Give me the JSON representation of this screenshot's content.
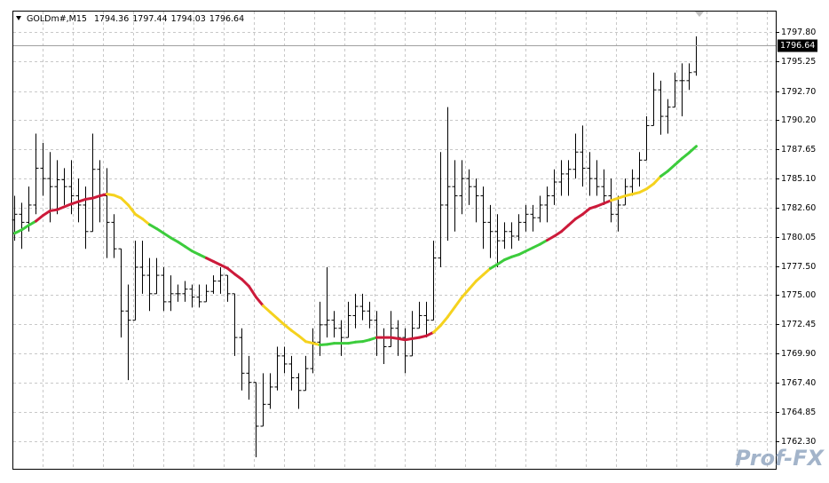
{
  "chart_data": {
    "type": "ohlc",
    "title": "GOLDm#,M15",
    "bar_color": "#000000",
    "grid": true,
    "watermark": "Prof-FX",
    "ylim": [
      1759.9,
      1799.6
    ],
    "yticks": [
      {
        "value": 1797.8,
        "label": "1797.80"
      },
      1795.25,
      {
        "value": 1792.7,
        "label": "1792.70"
      },
      {
        "value": 1790.2,
        "label": "1790.20"
      },
      1787.65,
      {
        "value": 1785.1,
        "label": "1785.10"
      },
      {
        "value": 1782.6,
        "label": "1782.60"
      },
      1780.05,
      {
        "value": 1777.5,
        "label": "1777.50"
      },
      {
        "value": 1775,
        "label": "1775.00"
      },
      1772.45,
      {
        "value": 1769.9,
        "label": "1769.90"
      },
      {
        "value": 1767.4,
        "label": "1767.40"
      },
      1764.85,
      {
        "value": 1762.3,
        "label": "1762.30"
      }
    ],
    "open": [
      1781.5,
      1782.0,
      1781.3,
      1782.8,
      1786.0,
      1785.1,
      1784.4,
      1785.0,
      1784.4,
      1783.6,
      1782.8,
      1780.5,
      1785.9,
      1783.6,
      1781.3,
      1779.0,
      1773.6,
      1772.8,
      1777.4,
      1776.7,
      1775.1,
      1776.7,
      1774.4,
      1775.1,
      1775.1,
      1775.5,
      1774.8,
      1774.4,
      1775.3,
      1776.2,
      1776.7,
      1775.1,
      1771.3,
      1768.2,
      1767.4,
      1763.6,
      1765.5,
      1767.0,
      1769.7,
      1769.0,
      1767.8,
      1766.7,
      1768.6,
      1770.9,
      1772.4,
      1772.8,
      1772.1,
      1771.3,
      1773.2,
      1774.0,
      1773.6,
      1772.8,
      1771.3,
      1770.5,
      1772.1,
      1771.3,
      1769.7,
      1772.1,
      1773.2,
      1772.8,
      1778.2,
      1782.8,
      1784.4,
      1783.6,
      1785.1,
      1784.4,
      1783.6,
      1781.3,
      1780.5,
      1779.7,
      1780.5,
      1780.1,
      1781.3,
      1782.0,
      1781.7,
      1782.8,
      1783.6,
      1784.8,
      1785.5,
      1785.9,
      1787.4,
      1786.0,
      1785.1,
      1784.4,
      1783.6,
      1782.0,
      1782.8,
      1784.4,
      1785.1,
      1786.7,
      1789.7,
      1792.8,
      1790.5,
      1791.3,
      1793.6,
      1793.6,
      1794.36
    ],
    "high": [
      1783.6,
      1783.0,
      1784.4,
      1789.0,
      1788.2,
      1787.4,
      1786.7,
      1786.0,
      1786.7,
      1785.1,
      1784.4,
      1789.0,
      1786.7,
      1786.0,
      1782.0,
      1779.0,
      1775.9,
      1779.7,
      1779.7,
      1778.2,
      1778.2,
      1777.4,
      1776.7,
      1775.9,
      1776.2,
      1775.9,
      1775.9,
      1775.9,
      1776.7,
      1777.4,
      1776.7,
      1775.1,
      1772.1,
      1769.7,
      1767.4,
      1768.2,
      1768.2,
      1770.5,
      1770.5,
      1769.7,
      1768.2,
      1769.7,
      1772.1,
      1774.4,
      1777.4,
      1773.6,
      1772.8,
      1774.4,
      1775.1,
      1775.1,
      1774.4,
      1773.6,
      1772.1,
      1773.6,
      1772.8,
      1772.1,
      1773.6,
      1774.4,
      1774.4,
      1779.7,
      1787.4,
      1791.3,
      1786.7,
      1786.7,
      1785.9,
      1785.1,
      1784.4,
      1782.8,
      1782.0,
      1781.3,
      1781.3,
      1782.0,
      1782.8,
      1782.8,
      1783.6,
      1784.4,
      1785.9,
      1786.7,
      1786.7,
      1789.0,
      1789.7,
      1787.4,
      1786.7,
      1785.9,
      1785.1,
      1783.6,
      1785.1,
      1785.9,
      1787.4,
      1790.5,
      1794.3,
      1793.6,
      1792.0,
      1794.3,
      1795.1,
      1795.1,
      1797.44
    ],
    "low": [
      1779.7,
      1779.0,
      1780.5,
      1782.0,
      1783.6,
      1781.3,
      1782.0,
      1782.8,
      1782.0,
      1781.3,
      1779.0,
      1780.5,
      1781.3,
      1778.2,
      1778.2,
      1771.3,
      1767.6,
      1772.8,
      1775.1,
      1773.6,
      1775.1,
      1773.6,
      1773.6,
      1774.4,
      1774.4,
      1773.9,
      1773.9,
      1774.4,
      1775.1,
      1775.1,
      1774.4,
      1769.7,
      1766.7,
      1765.9,
      1760.9,
      1763.6,
      1765.1,
      1766.7,
      1768.2,
      1766.7,
      1765.1,
      1766.7,
      1768.2,
      1769.7,
      1771.3,
      1771.3,
      1769.7,
      1771.3,
      1772.1,
      1772.8,
      1772.1,
      1769.7,
      1769.0,
      1770.5,
      1769.7,
      1768.2,
      1769.7,
      1772.1,
      1771.3,
      1772.8,
      1777.4,
      1779.7,
      1780.5,
      1782.0,
      1782.8,
      1781.3,
      1779.0,
      1778.2,
      1777.4,
      1779.0,
      1779.0,
      1779.7,
      1780.5,
      1780.5,
      1781.3,
      1781.3,
      1782.8,
      1783.6,
      1783.6,
      1785.1,
      1784.4,
      1783.6,
      1783.6,
      1782.8,
      1781.3,
      1780.5,
      1782.8,
      1783.6,
      1784.4,
      1786.7,
      1789.7,
      1788.9,
      1789.0,
      1791.3,
      1790.5,
      1792.8,
      1794.03
    ],
    "close": [
      1782.0,
      1781.3,
      1782.8,
      1786.0,
      1785.1,
      1784.4,
      1785.0,
      1784.4,
      1783.6,
      1782.8,
      1780.5,
      1785.9,
      1783.6,
      1781.3,
      1779.0,
      1773.6,
      1772.8,
      1777.4,
      1776.7,
      1775.1,
      1776.7,
      1774.4,
      1775.1,
      1775.1,
      1775.5,
      1774.8,
      1774.4,
      1775.3,
      1776.2,
      1776.7,
      1775.1,
      1771.3,
      1768.2,
      1767.4,
      1763.6,
      1765.5,
      1767.0,
      1769.7,
      1769.0,
      1767.8,
      1766.7,
      1768.6,
      1770.9,
      1772.4,
      1772.8,
      1772.1,
      1771.3,
      1773.2,
      1774.0,
      1773.6,
      1772.8,
      1771.3,
      1770.5,
      1772.1,
      1771.3,
      1769.7,
      1772.1,
      1773.2,
      1772.8,
      1778.2,
      1782.8,
      1784.4,
      1783.6,
      1785.1,
      1784.4,
      1783.6,
      1781.3,
      1780.5,
      1779.7,
      1780.5,
      1780.1,
      1781.3,
      1782.0,
      1781.7,
      1782.8,
      1783.6,
      1784.8,
      1785.5,
      1785.9,
      1787.4,
      1786.0,
      1785.1,
      1784.4,
      1783.6,
      1782.0,
      1782.8,
      1784.4,
      1785.1,
      1786.7,
      1789.7,
      1792.8,
      1790.5,
      1791.3,
      1793.6,
      1793.6,
      1794.3,
      1796.64
    ],
    "ma": {
      "values": [
        1780.35,
        1780.65,
        1781.05,
        1781.4,
        1781.9,
        1782.3,
        1782.4,
        1782.65,
        1782.9,
        1783.1,
        1783.3,
        1783.4,
        1783.6,
        1783.75,
        1783.65,
        1783.4,
        1782.8,
        1782.0,
        1781.6,
        1781.1,
        1780.75,
        1780.35,
        1779.95,
        1779.6,
        1779.2,
        1778.8,
        1778.5,
        1778.2,
        1777.9,
        1777.6,
        1777.3,
        1776.8,
        1776.35,
        1775.75,
        1774.8,
        1774.05,
        1773.5,
        1772.95,
        1772.4,
        1771.9,
        1771.45,
        1770.95,
        1770.8,
        1770.65,
        1770.7,
        1770.8,
        1770.8,
        1770.8,
        1770.9,
        1770.95,
        1771.1,
        1771.3,
        1771.3,
        1771.3,
        1771.2,
        1771.1,
        1771.2,
        1771.3,
        1771.45,
        1771.75,
        1772.35,
        1773.1,
        1773.95,
        1774.8,
        1775.5,
        1776.2,
        1776.75,
        1777.3,
        1777.65,
        1778.05,
        1778.3,
        1778.5,
        1778.8,
        1779.1,
        1779.4,
        1779.75,
        1780.1,
        1780.5,
        1781.05,
        1781.6,
        1782.0,
        1782.5,
        1782.7,
        1782.95,
        1783.2,
        1783.4,
        1783.6,
        1783.75,
        1783.9,
        1784.2,
        1784.65,
        1785.3,
        1785.75,
        1786.3,
        1786.85,
        1787.35,
        1787.9
      ],
      "colors": [
        "#3ccc3c",
        "#3ccc3c",
        "#3ccc3c",
        "#3ccc3c",
        "#cc1a3a",
        "#cc1a3a",
        "#cc1a3a",
        "#cc1a3a",
        "#cc1a3a",
        "#cc1a3a",
        "#cc1a3a",
        "#cc1a3a",
        "#cc1a3a",
        "#cc1a3a",
        "#f5d21e",
        "#f5d21e",
        "#f5d21e",
        "#f5d21e",
        "#f5d21e",
        "#f5d21e",
        "#3ccc3c",
        "#3ccc3c",
        "#3ccc3c",
        "#3ccc3c",
        "#3ccc3c",
        "#3ccc3c",
        "#3ccc3c",
        "#3ccc3c",
        "#cc1a3a",
        "#cc1a3a",
        "#cc1a3a",
        "#cc1a3a",
        "#cc1a3a",
        "#cc1a3a",
        "#cc1a3a",
        "#cc1a3a",
        "#f5d21e",
        "#f5d21e",
        "#f5d21e",
        "#f5d21e",
        "#f5d21e",
        "#f5d21e",
        "#f5d21e",
        "#f5d21e",
        "#3ccc3c",
        "#3ccc3c",
        "#3ccc3c",
        "#3ccc3c",
        "#3ccc3c",
        "#3ccc3c",
        "#3ccc3c",
        "#3ccc3c",
        "#cc1a3a",
        "#cc1a3a",
        "#cc1a3a",
        "#cc1a3a",
        "#cc1a3a",
        "#cc1a3a",
        "#cc1a3a",
        "#cc1a3a",
        "#f5d21e",
        "#f5d21e",
        "#f5d21e",
        "#f5d21e",
        "#f5d21e",
        "#f5d21e",
        "#f5d21e",
        "#f5d21e",
        "#3ccc3c",
        "#3ccc3c",
        "#3ccc3c",
        "#3ccc3c",
        "#3ccc3c",
        "#3ccc3c",
        "#3ccc3c",
        "#3ccc3c",
        "#cc1a3a",
        "#cc1a3a",
        "#cc1a3a",
        "#cc1a3a",
        "#cc1a3a",
        "#cc1a3a",
        "#cc1a3a",
        "#cc1a3a",
        "#cc1a3a",
        "#f5d21e",
        "#f5d21e",
        "#f5d21e",
        "#f5d21e",
        "#f5d21e",
        "#f5d21e",
        "#f5d21e",
        "#3ccc3c",
        "#3ccc3c",
        "#3ccc3c",
        "#3ccc3c",
        "#3ccc3c"
      ]
    }
  }
}
